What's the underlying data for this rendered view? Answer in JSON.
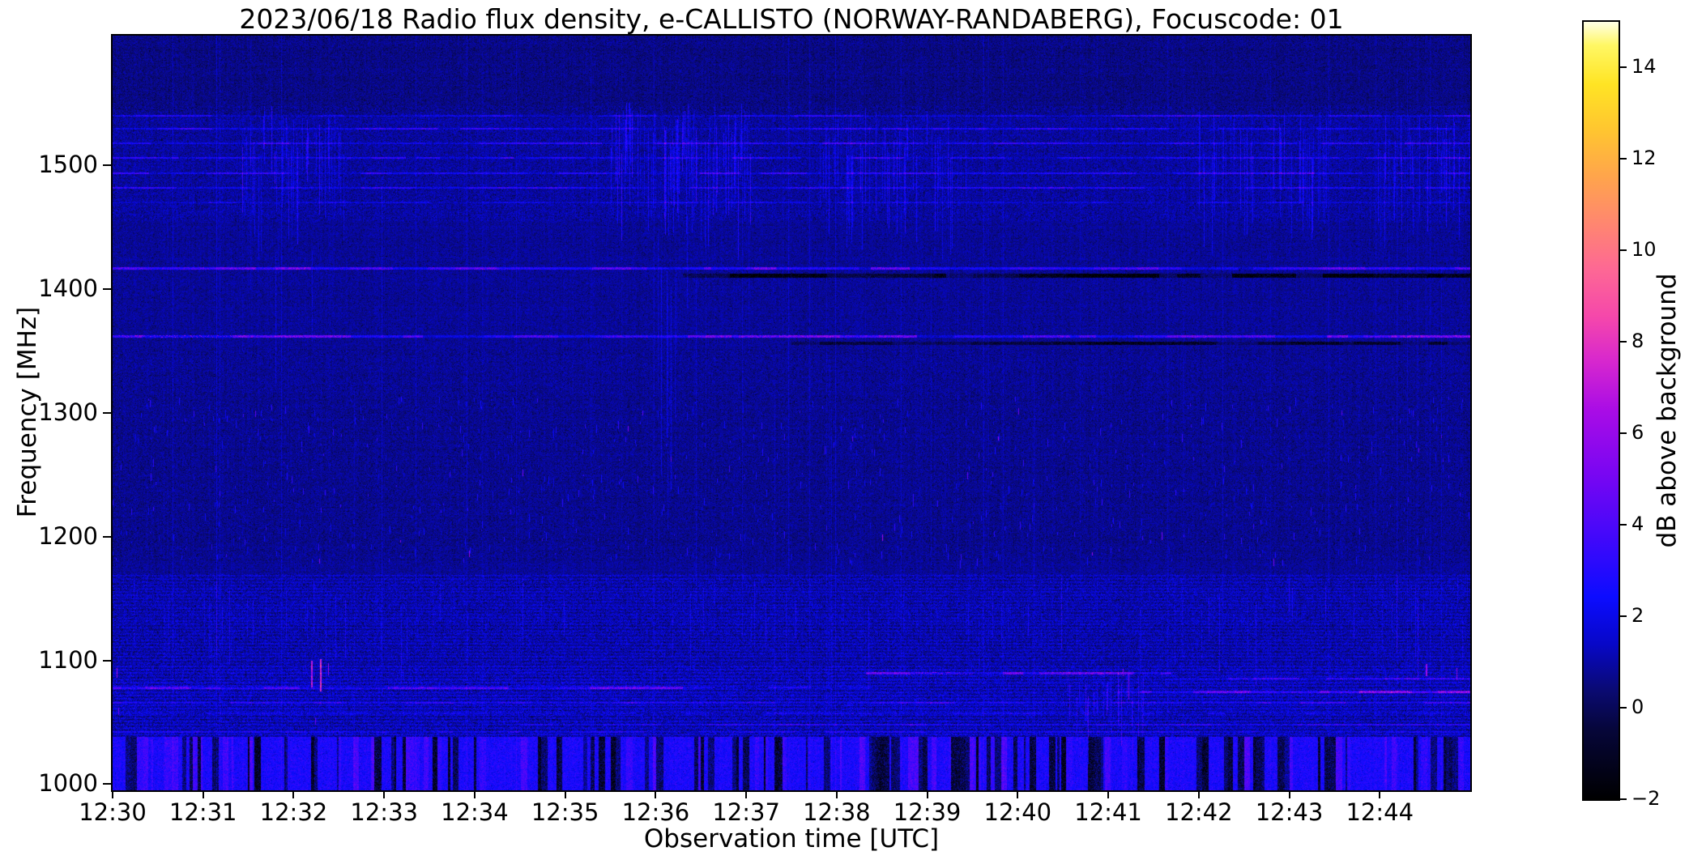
{
  "chart_data": {
    "type": "heatmap",
    "title": "2023/06/18  Radio flux density, e-CALLISTO (NORWAY-RANDABERG), Focuscode: 01",
    "xlabel": "Observation time [UTC]",
    "ylabel": "Frequency [MHz]",
    "x_ticks": [
      "12:30",
      "12:31",
      "12:32",
      "12:33",
      "12:34",
      "12:35",
      "12:36",
      "12:37",
      "12:38",
      "12:39",
      "12:40",
      "12:41",
      "12:42",
      "12:43",
      "12:44"
    ],
    "x_range_minutes": [
      0,
      15
    ],
    "y_ticks": [
      1000,
      1100,
      1200,
      1300,
      1400,
      1500
    ],
    "y_range": [
      995,
      1605
    ],
    "grid": false,
    "colorbar": {
      "label": "dB above background",
      "ticks": [
        -2,
        0,
        2,
        4,
        6,
        8,
        10,
        12,
        14
      ],
      "range": [
        -2,
        15
      ],
      "colormap": [
        [
          0.0,
          "#000000"
        ],
        [
          0.09,
          "#06063a"
        ],
        [
          0.14,
          "#0a0a72"
        ],
        [
          0.2,
          "#0707c8"
        ],
        [
          0.26,
          "#0c0cff"
        ],
        [
          0.34,
          "#4408fa"
        ],
        [
          0.42,
          "#7a06f2"
        ],
        [
          0.5,
          "#a90ce6"
        ],
        [
          0.565,
          "#d828cd"
        ],
        [
          0.62,
          "#f547ab"
        ],
        [
          0.68,
          "#fd6795"
        ],
        [
          0.74,
          "#ff8670"
        ],
        [
          0.8,
          "#ffa44c"
        ],
        [
          0.86,
          "#ffc530"
        ],
        [
          0.92,
          "#ffe424"
        ],
        [
          0.97,
          "#fff764"
        ],
        [
          1.0,
          "#ffffe6"
        ]
      ]
    },
    "seed": 20230618,
    "background_db": 0.85,
    "noise_db": 0.55,
    "bands": [
      {
        "f0": 1540,
        "f1": 1605,
        "add": -0.25,
        "extra_var": 0.25
      },
      {
        "f0": 1455,
        "f1": 1548,
        "add": 0.1,
        "extra_var": 0.55
      },
      {
        "f0": 1313,
        "f1": 1352,
        "add": -0.05,
        "extra_var": 0.35
      },
      {
        "f0": 1180,
        "f1": 1313,
        "add": -0.1,
        "extra_var": 0.3,
        "speckle": {
          "density": 0.002,
          "len": 9,
          "vmin": 1.6,
          "vmax": 3.4,
          "pink_prob": 0.02,
          "pink_boost": 3.0
        }
      },
      {
        "f0": 1096,
        "f1": 1170,
        "add": 0.3,
        "extra_var": 0.85,
        "row_texture": 0.3
      },
      {
        "f0": 1038,
        "f1": 1096,
        "add": 0.45,
        "extra_var": 1.0,
        "row_texture": 0.4
      },
      {
        "f0": 995,
        "f1": 1038,
        "add": 1.9,
        "extra_var": 0.6,
        "vstripes": {
          "dark_prob": 0.32,
          "dark_add": -3.0,
          "bright_prob": 0.18,
          "bright_add": 0.9
        }
      }
    ],
    "hlines": [
      {
        "f": 1540,
        "add": 1.4,
        "th": 2
      },
      {
        "f": 1530,
        "add": 1.4,
        "th": 2
      },
      {
        "f": 1518,
        "add": 1.5,
        "th": 2
      },
      {
        "f": 1506,
        "add": 1.4,
        "th": 2
      },
      {
        "f": 1494,
        "add": 1.5,
        "th": 2
      },
      {
        "f": 1482,
        "add": 1.4,
        "th": 2
      },
      {
        "f": 1470,
        "add": 0.8,
        "th": 2
      },
      {
        "f": 1417,
        "add": 2.3,
        "th": 3
      },
      {
        "f": 1411,
        "add": -1.6,
        "th": 5,
        "t0": 0.42,
        "t1": 1.0
      },
      {
        "f": 1362,
        "add": 2.5,
        "th": 3,
        "pink_segs": [
          [
            0.005,
            0.1
          ],
          [
            0.12,
            0.17
          ]
        ],
        "pink_db": 6.2
      },
      {
        "f": 1356,
        "add": -1.5,
        "th": 4,
        "t0": 0.5,
        "t1": 1.0
      },
      {
        "f": 1078,
        "add": 1.9,
        "th": 3,
        "t0": 0.0,
        "t1": 0.42
      },
      {
        "f": 1078,
        "add": 1.2,
        "th": 2,
        "t0": 0.42,
        "t1": 0.56
      },
      {
        "f": 1090,
        "add": 2.2,
        "th": 3,
        "t0": 0.555,
        "t1": 0.78,
        "pink_segs": [
          [
            0.585,
            0.635
          ],
          [
            0.695,
            0.75
          ]
        ],
        "pink_db": 5.8
      },
      {
        "f": 1085,
        "add": 1.8,
        "th": 2,
        "t0": 0.78,
        "t1": 1.0
      },
      {
        "f": 1075,
        "add": 2.4,
        "th": 3,
        "t0": 0.74,
        "t1": 1.0
      },
      {
        "f": 1066,
        "add": 1.3,
        "th": 2
      },
      {
        "f": 1057,
        "add": 0.9,
        "th": 2
      },
      {
        "f": 1048,
        "add": 1.0,
        "th": 2,
        "t0": 0.3,
        "t1": 1.0
      },
      {
        "f": 1042,
        "add": 0.8,
        "th": 2
      }
    ],
    "vstreak_clusters": [
      {
        "t0": 0.095,
        "t1": 0.175,
        "f0": 1462,
        "f1": 1548,
        "prob": 0.3,
        "add": 1.3
      },
      {
        "t0": 0.115,
        "t1": 0.155,
        "f0": 1350,
        "f1": 1470,
        "prob": 0.1,
        "add": 0.8
      },
      {
        "t0": 0.355,
        "t1": 0.47,
        "f0": 1462,
        "f1": 1552,
        "prob": 0.32,
        "add": 1.4
      },
      {
        "t0": 0.395,
        "t1": 0.425,
        "f0": 1250,
        "f1": 1462,
        "prob": 0.08,
        "add": 0.8
      },
      {
        "t0": 0.52,
        "t1": 0.63,
        "f0": 1462,
        "f1": 1548,
        "prob": 0.25,
        "add": 1.1
      },
      {
        "t0": 0.7,
        "t1": 0.76,
        "f0": 1038,
        "f1": 1096,
        "prob": 0.25,
        "add": 1.5
      },
      {
        "t0": 0.8,
        "t1": 0.9,
        "f0": 1462,
        "f1": 1548,
        "prob": 0.26,
        "add": 1.2
      },
      {
        "t0": 0.93,
        "t1": 1.0,
        "f0": 1462,
        "f1": 1548,
        "prob": 0.22,
        "add": 1.1
      },
      {
        "t0": 0.0,
        "t1": 1.0,
        "f0": 1100,
        "f1": 1170,
        "prob": 0.05,
        "add": 0.9
      },
      {
        "t0": 0.0,
        "t1": 1.0,
        "f0": 995,
        "f1": 1605,
        "prob": 0.012,
        "add": 0.55
      }
    ],
    "events": [
      {
        "t": 0.003,
        "f0": 1086,
        "f1": 1094,
        "v": 6.5,
        "w": 1
      },
      {
        "t": 0.004,
        "f0": 1056,
        "f1": 1062,
        "v": 5.0,
        "w": 1
      },
      {
        "t": 0.146,
        "f0": 1078,
        "f1": 1100,
        "v": 7.2,
        "w": 2
      },
      {
        "t": 0.153,
        "f0": 1075,
        "f1": 1101,
        "v": 8.0,
        "w": 2
      },
      {
        "t": 0.159,
        "f0": 1088,
        "f1": 1098,
        "v": 6.2,
        "w": 1
      },
      {
        "t": 0.149,
        "f0": 1048,
        "f1": 1054,
        "v": 4.8,
        "w": 1
      },
      {
        "t": 0.744,
        "f0": 1087,
        "f1": 1093,
        "v": 6.0,
        "w": 1
      },
      {
        "t": 0.748,
        "f0": 1068,
        "f1": 1090,
        "v": 5.5,
        "w": 1
      },
      {
        "t": 0.967,
        "f0": 1087,
        "f1": 1097,
        "v": 6.4,
        "w": 2
      },
      {
        "t": 0.99,
        "f0": 1084,
        "f1": 1094,
        "v": 6.0,
        "w": 1
      },
      {
        "t": 0.105,
        "f0": 1297,
        "f1": 1302,
        "v": 4.6,
        "w": 1
      },
      {
        "t": 0.302,
        "f0": 1249,
        "f1": 1254,
        "v": 5.2,
        "w": 1
      },
      {
        "t": 0.39,
        "f0": 1298,
        "f1": 1302,
        "v": 4.4,
        "w": 1
      },
      {
        "t": 0.545,
        "f0": 1277,
        "f1": 1281,
        "v": 4.8,
        "w": 1
      },
      {
        "t": 0.667,
        "f0": 1299,
        "f1": 1304,
        "v": 5.0,
        "w": 1
      },
      {
        "t": 0.905,
        "f0": 1298,
        "f1": 1302,
        "v": 4.6,
        "w": 1
      },
      {
        "t": 0.962,
        "f0": 1268,
        "f1": 1272,
        "v": 4.5,
        "w": 1
      }
    ]
  }
}
